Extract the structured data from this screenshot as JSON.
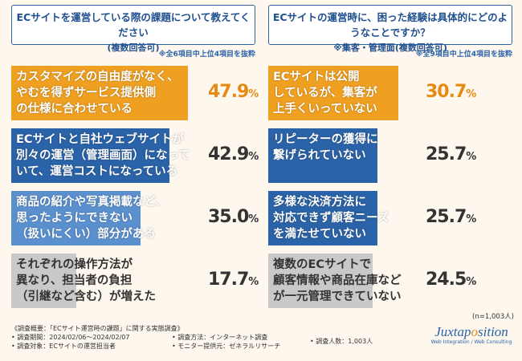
{
  "chart_data": [
    {
      "type": "bar",
      "title": "ECサイトを運営している際の課題について教えてください",
      "subtitle": "(複数回答可)",
      "note": "※全6項目中上位4項目を抜粋",
      "categories": [
        "カスタマイズの自由度がなく、やむを得ずサービス提供側の仕様に合わせている",
        "ECサイトと自社ウェブサイトが別々の運営（管理画面）になっていて、運営コストになっている",
        "商品の紹介や写真掲載など、思ったようにできない（扱いにくい）部分がある",
        "それぞれの操作方法が異なり、担当者の負担（引継など含む）が増えた"
      ],
      "display_labels": [
        "カスタマイズの自由度がなく、\nやむを得ずサービス提供側\nの仕様に合わせている",
        "ECサイトと自社ウェブサイトが\n別々の運営（管理画面）になって\nいて、運営コストになっている",
        "商品の紹介や写真掲載など、\n思ったようにできない\n（扱いにくい）部分がある",
        "それぞれの操作方法が\n異なり、担当者の負担\n（引継など含む）が増えた"
      ],
      "values": [
        47.9,
        42.9,
        35.0,
        17.7
      ],
      "value_labels": [
        "47.9",
        "42.9",
        "35.0",
        "17.7"
      ],
      "unit": "%",
      "colors": [
        "#f0a021",
        "#2b63a8",
        "#5b90cf",
        "#c9c9c9"
      ]
    },
    {
      "type": "bar",
      "title": "ECサイトの運営時に、困った経験は具体的にどのようなことですか？",
      "subtitle": "※集客・管理面(複数回答可)",
      "note": "※全9項目中上位4項目を抜粋",
      "categories": [
        "ECサイトは公開しているが、集客が上手くいっていない",
        "リピーターの獲得に繋げられていない",
        "多様な決済方法に対応できず顧客ニーズを満たせていない",
        "複数のECサイトで顧客情報や商品在庫などが一元管理できていない"
      ],
      "display_labels": [
        "ECサイトは公開\nしているが、集客が\n上手くいっていない",
        "リピーターの獲得に\n繋げられていない",
        "多様な決済方法に\n対応できず顧客ニーズ\nを満たせていない",
        "複数のECサイトで\n顧客情報や商品在庫など\nが一元管理できていない"
      ],
      "values": [
        30.7,
        25.7,
        25.7,
        24.5
      ],
      "value_labels": [
        "30.7",
        "25.7",
        "25.7",
        "24.5"
      ],
      "unit": "%",
      "colors": [
        "#f0a021",
        "#2b63a8",
        "#2b63a8",
        "#c9c9c9"
      ]
    }
  ],
  "n_label": "(n=1,003人)",
  "footer": {
    "title": "《調査概要：「ECサイト運営時の課題」に関する実態調査》",
    "period": "• 調査期間：2024/02/06～2024/02/07",
    "target": "• 調査対象：ECサイトの運営担当者",
    "method": "• 調査方法：インターネット調査",
    "provider": "• モニター提供元：ゼネラルリサーチ",
    "count": "• 調査人数：1,003人"
  },
  "logo": {
    "name_a": "Juxtap",
    "name_b": "o",
    "name_c": "sition",
    "sub": "Web Integration / Web Consulting"
  }
}
